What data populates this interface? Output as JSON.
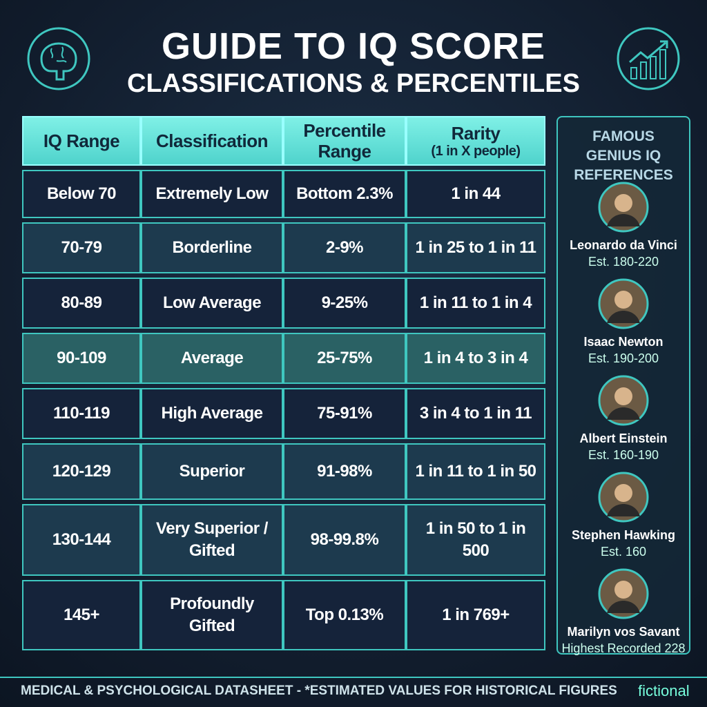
{
  "header": {
    "title": "GUIDE TO IQ SCORE",
    "subtitle": "CLASSIFICATIONS & PERCENTILES"
  },
  "table": {
    "headers": [
      "IQ Range",
      "Classification",
      "Percentile Range",
      {
        "label": "Rarity",
        "note": "(1 in X people)"
      }
    ],
    "rows": [
      [
        "Below 70",
        "Extremely Low",
        "Bottom 2.3%",
        "1 in 44"
      ],
      [
        "70-79",
        "Borderline",
        "2-9%",
        "1 in 25 to 1 in 11"
      ],
      [
        "80-89",
        "Low Average",
        "9-25%",
        "1 in 11 to 1 in 4"
      ],
      [
        "90-109",
        "Average",
        "25-75%",
        "1 in 4 to 3 in 4"
      ],
      [
        "110-119",
        "High Average",
        "75-91%",
        "3 in 4 to 1 in 11"
      ],
      [
        "120-129",
        "Superior",
        "91-98%",
        "1 in 11 to 1 in 50"
      ],
      [
        "130-144",
        "Very Superior / Gifted",
        "98-99.8%",
        "1 in 50 to 1 in 500"
      ],
      [
        "145+",
        "Profoundly Gifted",
        "Top 0.13%",
        "1 in 769+"
      ]
    ]
  },
  "sidebar": {
    "title": "FAMOUS GENIUS IQ REFERENCES",
    "people": [
      {
        "name": "Leonardo da Vinci",
        "estimate": "Est. 180-220"
      },
      {
        "name": "Isaac Newton",
        "estimate": "Est. 190-200"
      },
      {
        "name": "Albert Einstein",
        "estimate": "Est. 160-190"
      },
      {
        "name": "Stephen Hawking",
        "estimate": "Est. 160"
      },
      {
        "name": "Marilyn vos Savant",
        "estimate": "Highest Recorded 228"
      }
    ]
  },
  "footer": {
    "text": "MEDICAL & PSYCHOLOGICAL DATASHEET - *ESTIMATED VALUES FOR HISTORICAL FIGURES",
    "brand": "fictional"
  }
}
